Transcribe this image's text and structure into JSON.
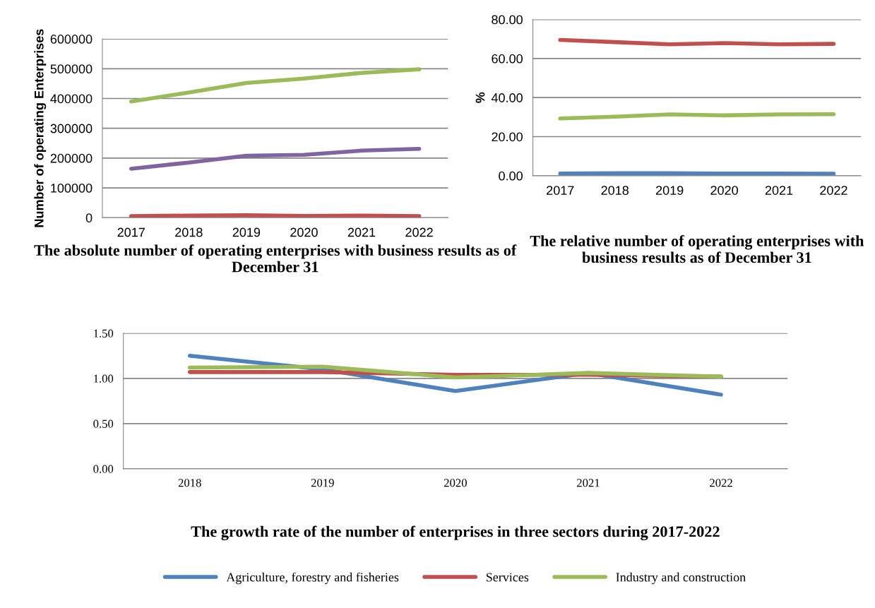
{
  "chart_data": [
    {
      "type": "line",
      "title": "The absolute number of operating enterprises with business results as of December 31",
      "ylabel": "Number of operating Enterprises",
      "categories": [
        "2017",
        "2018",
        "2019",
        "2020",
        "2021",
        "2022"
      ],
      "ylim": [
        0,
        600000
      ],
      "yticks": [
        0,
        100000,
        200000,
        300000,
        400000,
        500000,
        600000
      ],
      "grid": "y",
      "legend": false,
      "marker": "none",
      "line_style": "solid",
      "series": [
        {
          "color": "#9bbb59",
          "values": [
            390000,
            420000,
            452000,
            467000,
            486000,
            498000
          ]
        },
        {
          "color": "#8064a2",
          "values": [
            164000,
            185000,
            208000,
            211000,
            225000,
            231000
          ]
        },
        {
          "color": "#c0504d",
          "values": [
            5000,
            7000,
            8000,
            6000,
            7000,
            5000
          ]
        }
      ]
    },
    {
      "type": "line",
      "title": "The relative number of operating enterprises with business results as of December 31",
      "ylabel": "%",
      "categories": [
        "2017",
        "2018",
        "2019",
        "2020",
        "2021",
        "2022"
      ],
      "ylim": [
        0,
        80
      ],
      "yticks": [
        {
          "value": 0,
          "label": "0.00"
        },
        {
          "value": 20,
          "label": "20.00"
        },
        {
          "value": 40,
          "label": "40.00"
        },
        {
          "value": 60,
          "label": "60.00"
        },
        {
          "value": 80,
          "label": "80.00"
        }
      ],
      "grid": "y",
      "legend": false,
      "marker": "none",
      "line_style": "solid",
      "series": [
        {
          "color": "#c0504d",
          "values": [
            69.5,
            68.4,
            67.3,
            67.9,
            67.3,
            67.5
          ]
        },
        {
          "color": "#9bbb59",
          "values": [
            29.3,
            30.2,
            31.4,
            30.9,
            31.4,
            31.5
          ]
        },
        {
          "color": "#4f81bd",
          "values": [
            1.1,
            1.3,
            1.3,
            1.1,
            1.1,
            1.0
          ]
        }
      ]
    },
    {
      "type": "line",
      "title": "The growth rate of the number of enterprises in three sectors during 2017-2022",
      "categories": [
        "2018",
        "2019",
        "2020",
        "2021",
        "2022"
      ],
      "ylim": [
        0,
        1.5
      ],
      "yticks": [
        {
          "value": 0,
          "label": "0.00"
        },
        {
          "value": 0.5,
          "label": "0.50"
        },
        {
          "value": 1.0,
          "label": "1.00"
        },
        {
          "value": 1.5,
          "label": "1.50"
        }
      ],
      "grid": "y",
      "legend": "bottom",
      "marker": "none",
      "line_style": "solid",
      "series": [
        {
          "name": "Agriculture, forestry and fisheries",
          "color": "#4f81bd",
          "values": [
            1.25,
            1.1,
            0.86,
            1.06,
            0.82
          ]
        },
        {
          "name": "Services",
          "color": "#c0504d",
          "values": [
            1.07,
            1.07,
            1.04,
            1.04,
            1.02
          ]
        },
        {
          "name": "Industry and construction",
          "color": "#9bbb59",
          "values": [
            1.12,
            1.13,
            1.01,
            1.06,
            1.02
          ]
        }
      ]
    }
  ]
}
